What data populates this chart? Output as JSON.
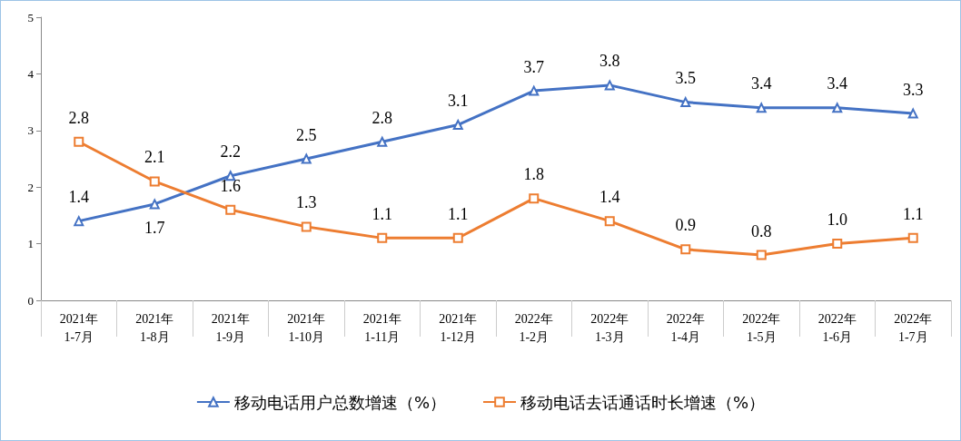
{
  "chart_data": {
    "type": "line",
    "categories": [
      "2021年\n1-7月",
      "2021年\n1-8月",
      "2021年\n1-9月",
      "2021年\n1-10月",
      "2021年\n1-11月",
      "2021年\n1-12月",
      "2022年\n1-2月",
      "2022年\n1-3月",
      "2022年\n1-4月",
      "2022年\n1-5月",
      "2022年\n1-6月",
      "2022年\n1-7月"
    ],
    "series": [
      {
        "name": "移动电话用户总数增速（%）",
        "color": "#4472c4",
        "marker": "triangle",
        "values": [
          1.4,
          1.7,
          2.2,
          2.5,
          2.8,
          3.1,
          3.7,
          3.8,
          3.5,
          3.4,
          3.4,
          3.3
        ],
        "value_labels": [
          "1.4",
          "1.7",
          "2.2",
          "2.5",
          "2.8",
          "3.1",
          "3.7",
          "3.8",
          "3.5",
          "3.4",
          "3.4",
          "3.3"
        ]
      },
      {
        "name": "移动电话去话通话时长增速（%）",
        "color": "#ed7d31",
        "marker": "square",
        "values": [
          2.8,
          2.1,
          1.6,
          1.3,
          1.1,
          1.1,
          1.8,
          1.4,
          0.9,
          0.8,
          1.0,
          1.1
        ],
        "value_labels": [
          "2.8",
          "2.1",
          "1.6",
          "1.3",
          "1.1",
          "1.1",
          "1.8",
          "1.4",
          "0.9",
          "0.8",
          "1.0",
          "1.1"
        ]
      }
    ],
    "ylim": [
      0,
      5
    ],
    "yticks": [
      0,
      1,
      2,
      3,
      4,
      5
    ],
    "grid": false,
    "legend": "bottom",
    "line_style": "solid"
  }
}
